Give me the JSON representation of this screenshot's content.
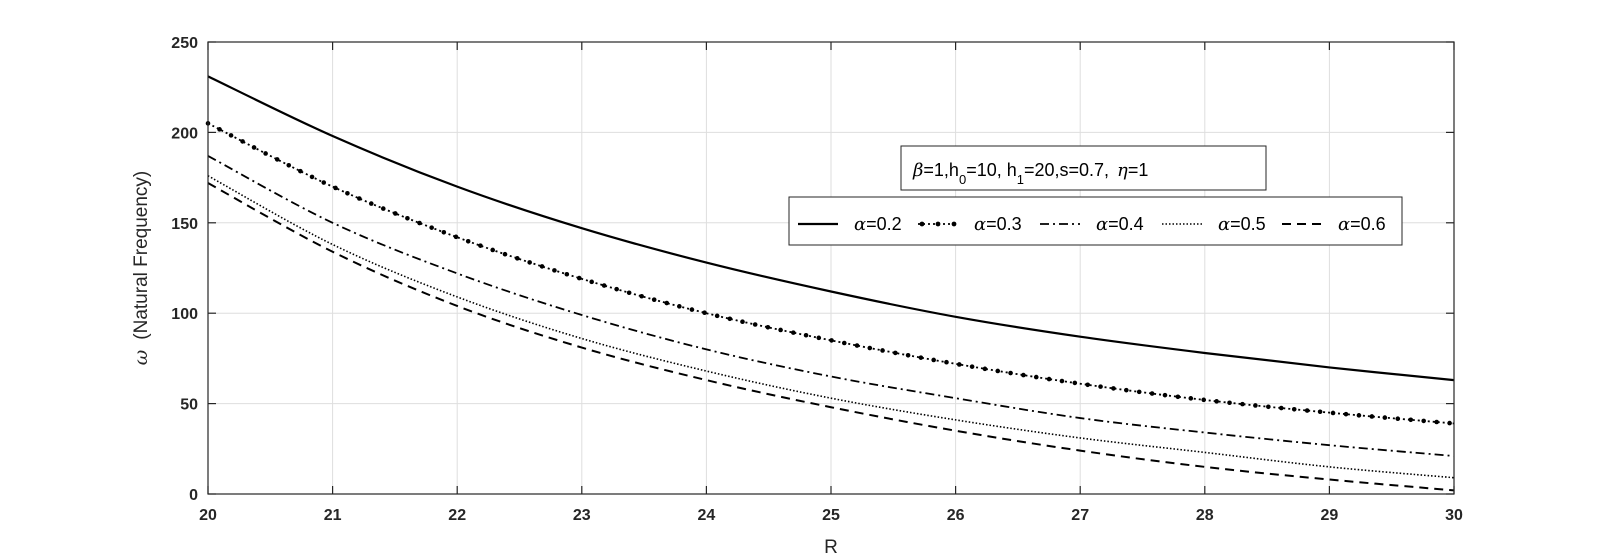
{
  "chart_data": {
    "type": "line",
    "xlabel": "R",
    "ylabel_symbol": "ω",
    "ylabel_text": "(Natural Frequency)",
    "xlim": [
      20,
      30
    ],
    "ylim": [
      0,
      250
    ],
    "xticks": [
      "20",
      "21",
      "22",
      "23",
      "24",
      "25",
      "26",
      "27",
      "28",
      "29",
      "30"
    ],
    "yticks": [
      "0",
      "50",
      "100",
      "150",
      "200",
      "250"
    ],
    "grid": true,
    "annotation": {
      "beta_sym": "β",
      "beta_rest": "=1,h",
      "h0_sub": "0",
      "h0_rest": "=10, h",
      "h1_sub": "1",
      "h1_rest": "=20,s=0.7,",
      "eta_sym": "η",
      "eta_rest": "=1"
    },
    "legend_position": "upper-right",
    "x": [
      20,
      21,
      22,
      23,
      24,
      25,
      26,
      27,
      28,
      29,
      30
    ],
    "series": [
      {
        "name": "α=0.2",
        "sym": "α",
        "val": "=0.2",
        "dash": "solid",
        "values": [
          231,
          198,
          170,
          147,
          128,
          112,
          98,
          87,
          78,
          70,
          63
        ]
      },
      {
        "name": "α=0.3",
        "sym": "α",
        "val": "=0.3",
        "dash": "dot-marker",
        "values": [
          205,
          170,
          142,
          119,
          100,
          85,
          72,
          61,
          52,
          45,
          39
        ]
      },
      {
        "name": "α=0.4",
        "sym": "α",
        "val": "=0.4",
        "dash": "dashdot",
        "values": [
          187,
          150,
          122,
          99,
          80,
          65,
          53,
          42,
          34,
          27,
          21
        ]
      },
      {
        "name": "α=0.5",
        "sym": "α",
        "val": "=0.5",
        "dash": "dotted",
        "values": [
          176,
          138,
          109,
          86,
          68,
          53,
          41,
          31,
          23,
          15,
          9
        ]
      },
      {
        "name": "α=0.6",
        "sym": "α",
        "val": "=0.6",
        "dash": "dashed",
        "values": [
          172,
          134,
          104,
          81,
          63,
          48,
          35,
          24,
          15,
          8,
          2
        ]
      }
    ]
  }
}
